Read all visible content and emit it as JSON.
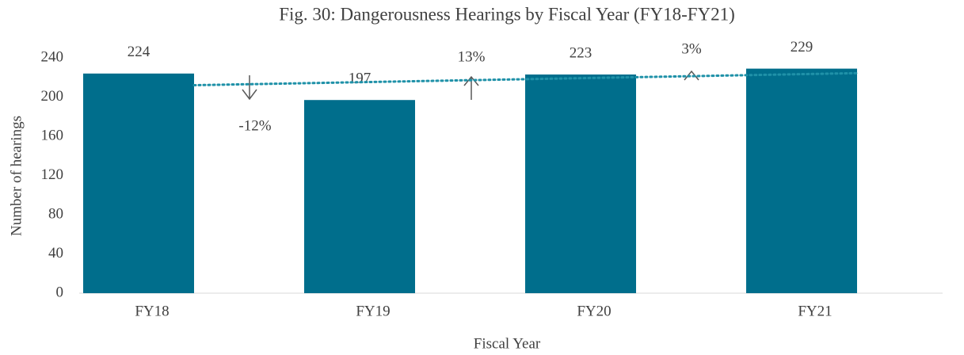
{
  "chart_data": {
    "type": "bar",
    "title": "Fig. 30: Dangerousness Hearings by Fiscal Year (FY18-FY21)",
    "x_label": "Fiscal Year",
    "y_label": "Number of hearings",
    "categories": [
      "FY18",
      "FY19",
      "FY20",
      "FY21"
    ],
    "values": [
      224,
      197,
      223,
      229
    ],
    "color": "#006e8c",
    "trendline": {
      "color": "#1f91a8",
      "style": "dotted"
    },
    "annotations": [
      "-12%",
      "13%",
      "3%"
    ],
    "ylim": [
      0,
      240
    ],
    "yticks": [
      0,
      40,
      80,
      120,
      160,
      200,
      240
    ],
    "grid": false
  }
}
